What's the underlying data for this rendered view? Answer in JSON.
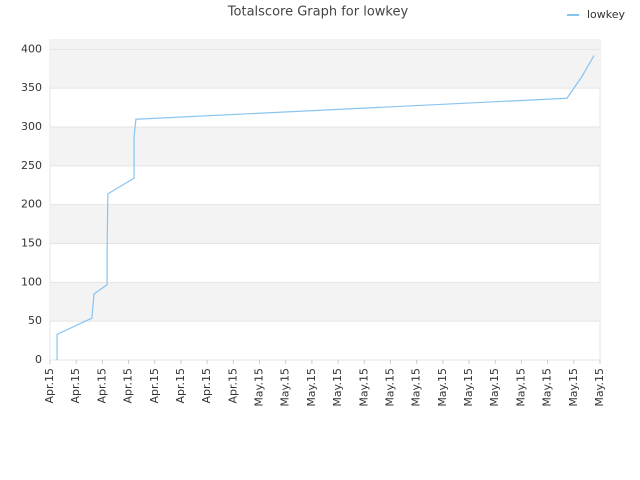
{
  "chart_data": {
    "type": "line",
    "title": "Totalscore Graph for lowkey",
    "legend": "top-right",
    "grid": true,
    "series": [
      {
        "name": "lowkey",
        "color": "#88c4f0",
        "x": [
          0.27,
          0.27,
          1.6,
          1.68,
          2.18,
          2.18,
          2.21,
          3.21,
          3.21,
          3.28,
          19.74,
          20.31,
          20.77
        ],
        "values": [
          0,
          33,
          54,
          85,
          97,
          141,
          214,
          234,
          287,
          310,
          337,
          365,
          392
        ]
      }
    ],
    "xlim": [
      0,
      21
    ],
    "xticks": [
      {
        "value": 0,
        "label": "Apr.15"
      },
      {
        "value": 1,
        "label": "Apr.15"
      },
      {
        "value": 2,
        "label": "Apr.15"
      },
      {
        "value": 3,
        "label": "Apr.15"
      },
      {
        "value": 4,
        "label": "Apr.15"
      },
      {
        "value": 5,
        "label": "Apr.15"
      },
      {
        "value": 6,
        "label": "Apr.15"
      },
      {
        "value": 7,
        "label": "Apr.15"
      },
      {
        "value": 8,
        "label": "May.15"
      },
      {
        "value": 9,
        "label": "May.15"
      },
      {
        "value": 10,
        "label": "May.15"
      },
      {
        "value": 11,
        "label": "May.15"
      },
      {
        "value": 12,
        "label": "May.15"
      },
      {
        "value": 13,
        "label": "May.15"
      },
      {
        "value": 14,
        "label": "May.15"
      },
      {
        "value": 15,
        "label": "May.15"
      },
      {
        "value": 16,
        "label": "May.15"
      },
      {
        "value": 17,
        "label": "May.15"
      },
      {
        "value": 18,
        "label": "May.15"
      },
      {
        "value": 19,
        "label": "May.15"
      },
      {
        "value": 20,
        "label": "May.15"
      },
      {
        "value": 21,
        "label": "May.15"
      }
    ],
    "ylim": [
      0,
      412
    ],
    "yticks": [
      0,
      50,
      100,
      150,
      200,
      250,
      300,
      350,
      400
    ]
  }
}
